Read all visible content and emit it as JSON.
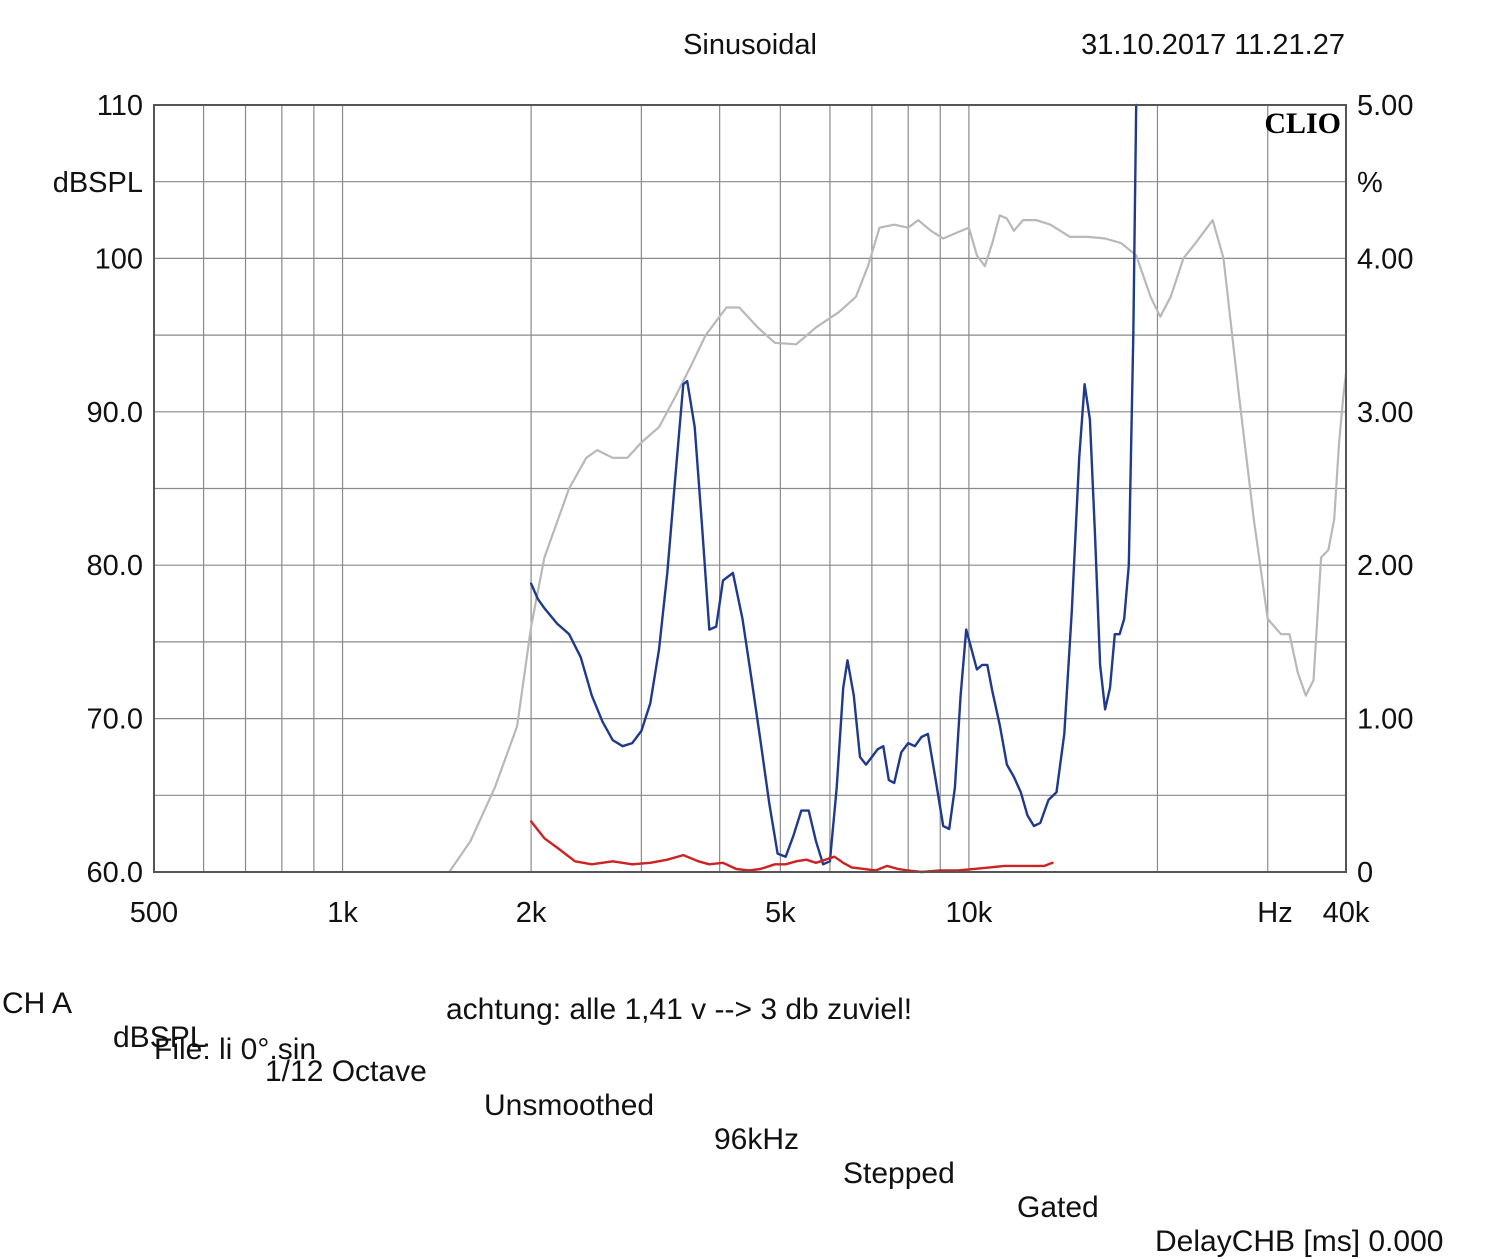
{
  "header": {
    "mode": "Sinusoidal",
    "datetime": "31.10.2017 11.21.27",
    "brand": "CLIO"
  },
  "chart_data": {
    "type": "line",
    "x_scale": "log",
    "xlim": [
      500,
      40000
    ],
    "ylim_left": [
      60,
      110
    ],
    "ylim_right": [
      0,
      5
    ],
    "left_unit": "dBSPL",
    "right_unit": "%",
    "x_unit": "Hz",
    "grid": true,
    "x_tick_labels": [
      {
        "v": 500,
        "t": "500"
      },
      {
        "v": 1000,
        "t": "1k"
      },
      {
        "v": 2000,
        "t": "2k"
      },
      {
        "v": 5000,
        "t": "5k"
      },
      {
        "v": 10000,
        "t": "10k"
      },
      {
        "v": 40000,
        "t": "40k"
      }
    ],
    "left_tick_labels": [
      {
        "v": 110,
        "t": "110"
      },
      {
        "v": 100,
        "t": "100"
      },
      {
        "v": 90,
        "t": "90.0"
      },
      {
        "v": 80,
        "t": "80.0"
      },
      {
        "v": 70,
        "t": "70.0"
      },
      {
        "v": 60,
        "t": "60.0"
      }
    ],
    "right_tick_labels": [
      {
        "v": 5,
        "t": "5.00"
      },
      {
        "v": 4,
        "t": "4.00"
      },
      {
        "v": 3,
        "t": "3.00"
      },
      {
        "v": 2,
        "t": "2.00"
      },
      {
        "v": 1,
        "t": "1.00"
      },
      {
        "v": 0,
        "t": "0"
      }
    ],
    "series": [
      {
        "axis": "left",
        "color": "#b8b8b8",
        "points": [
          [
            1480,
            60.0
          ],
          [
            1600,
            62.0
          ],
          [
            1750,
            65.5
          ],
          [
            1900,
            69.5
          ],
          [
            2000,
            76.0
          ],
          [
            2100,
            80.5
          ],
          [
            2300,
            85.0
          ],
          [
            2450,
            87.0
          ],
          [
            2550,
            87.5
          ],
          [
            2700,
            87.0
          ],
          [
            2850,
            87.0
          ],
          [
            3000,
            88.0
          ],
          [
            3200,
            89.0
          ],
          [
            3400,
            91.0
          ],
          [
            3600,
            93.0
          ],
          [
            3800,
            95.0
          ],
          [
            4100,
            96.8
          ],
          [
            4300,
            96.8
          ],
          [
            4600,
            95.5
          ],
          [
            4900,
            94.5
          ],
          [
            5300,
            94.4
          ],
          [
            5700,
            95.5
          ],
          [
            6200,
            96.5
          ],
          [
            6600,
            97.5
          ],
          [
            6900,
            99.5
          ],
          [
            7200,
            102.0
          ],
          [
            7600,
            102.2
          ],
          [
            8000,
            102.0
          ],
          [
            8300,
            102.5
          ],
          [
            8700,
            101.8
          ],
          [
            9100,
            101.3
          ],
          [
            9600,
            101.7
          ],
          [
            10000,
            102.0
          ],
          [
            10300,
            100.2
          ],
          [
            10600,
            99.5
          ],
          [
            10900,
            101.0
          ],
          [
            11200,
            102.8
          ],
          [
            11500,
            102.6
          ],
          [
            11800,
            101.8
          ],
          [
            12200,
            102.5
          ],
          [
            12800,
            102.5
          ],
          [
            13500,
            102.2
          ],
          [
            14500,
            101.4
          ],
          [
            15500,
            101.4
          ],
          [
            16500,
            101.3
          ],
          [
            17500,
            101.0
          ],
          [
            18500,
            100.2
          ],
          [
            19500,
            97.5
          ],
          [
            20200,
            96.2
          ],
          [
            21000,
            97.5
          ],
          [
            22000,
            100.0
          ],
          [
            23000,
            101.0
          ],
          [
            24000,
            102.0
          ],
          [
            24500,
            102.5
          ],
          [
            25500,
            100.0
          ],
          [
            27000,
            91.0
          ],
          [
            28500,
            83.0
          ],
          [
            30000,
            76.5
          ],
          [
            31500,
            75.5
          ],
          [
            32500,
            75.5
          ],
          [
            33500,
            73.0
          ],
          [
            34500,
            71.5
          ],
          [
            35500,
            72.5
          ],
          [
            36500,
            80.5
          ],
          [
            37500,
            81.0
          ],
          [
            38300,
            83.0
          ],
          [
            39000,
            88.0
          ],
          [
            39600,
            91.0
          ],
          [
            40000,
            92.5
          ]
        ]
      },
      {
        "axis": "right",
        "color": "#1f3a8c",
        "points": [
          [
            2000,
            1.88
          ],
          [
            2050,
            1.78
          ],
          [
            2100,
            1.72
          ],
          [
            2200,
            1.62
          ],
          [
            2300,
            1.55
          ],
          [
            2400,
            1.4
          ],
          [
            2500,
            1.15
          ],
          [
            2600,
            0.98
          ],
          [
            2700,
            0.86
          ],
          [
            2800,
            0.82
          ],
          [
            2900,
            0.84
          ],
          [
            3000,
            0.92
          ],
          [
            3100,
            1.1
          ],
          [
            3200,
            1.45
          ],
          [
            3300,
            1.95
          ],
          [
            3400,
            2.58
          ],
          [
            3500,
            3.18
          ],
          [
            3550,
            3.2
          ],
          [
            3650,
            2.9
          ],
          [
            3750,
            2.25
          ],
          [
            3850,
            1.58
          ],
          [
            3950,
            1.6
          ],
          [
            4050,
            1.9
          ],
          [
            4200,
            1.95
          ],
          [
            4350,
            1.65
          ],
          [
            4500,
            1.25
          ],
          [
            4650,
            0.85
          ],
          [
            4800,
            0.45
          ],
          [
            4950,
            0.12
          ],
          [
            5100,
            0.1
          ],
          [
            5250,
            0.24
          ],
          [
            5400,
            0.4
          ],
          [
            5550,
            0.4
          ],
          [
            5700,
            0.2
          ],
          [
            5850,
            0.05
          ],
          [
            6000,
            0.07
          ],
          [
            6150,
            0.55
          ],
          [
            6300,
            1.2
          ],
          [
            6400,
            1.38
          ],
          [
            6550,
            1.15
          ],
          [
            6700,
            0.75
          ],
          [
            6850,
            0.7
          ],
          [
            7000,
            0.75
          ],
          [
            7150,
            0.8
          ],
          [
            7300,
            0.82
          ],
          [
            7450,
            0.6
          ],
          [
            7600,
            0.58
          ],
          [
            7800,
            0.78
          ],
          [
            8000,
            0.84
          ],
          [
            8200,
            0.82
          ],
          [
            8400,
            0.88
          ],
          [
            8600,
            0.9
          ],
          [
            8850,
            0.6
          ],
          [
            9100,
            0.3
          ],
          [
            9300,
            0.28
          ],
          [
            9500,
            0.55
          ],
          [
            9700,
            1.15
          ],
          [
            9900,
            1.58
          ],
          [
            10100,
            1.45
          ],
          [
            10300,
            1.32
          ],
          [
            10500,
            1.35
          ],
          [
            10700,
            1.35
          ],
          [
            10900,
            1.18
          ],
          [
            11200,
            0.96
          ],
          [
            11500,
            0.7
          ],
          [
            11800,
            0.62
          ],
          [
            12100,
            0.52
          ],
          [
            12400,
            0.37
          ],
          [
            12700,
            0.3
          ],
          [
            13000,
            0.32
          ],
          [
            13400,
            0.47
          ],
          [
            13800,
            0.52
          ],
          [
            14200,
            0.9
          ],
          [
            14600,
            1.7
          ],
          [
            15000,
            2.7
          ],
          [
            15300,
            3.18
          ],
          [
            15600,
            2.95
          ],
          [
            15900,
            2.2
          ],
          [
            16200,
            1.35
          ],
          [
            16500,
            1.06
          ],
          [
            16800,
            1.2
          ],
          [
            17100,
            1.55
          ],
          [
            17400,
            1.55
          ],
          [
            17700,
            1.65
          ],
          [
            18000,
            2.0
          ],
          [
            18300,
            3.5
          ],
          [
            18500,
            5.0
          ]
        ]
      },
      {
        "axis": "right",
        "color": "#cc2222",
        "points": [
          [
            2000,
            0.33
          ],
          [
            2100,
            0.22
          ],
          [
            2200,
            0.16
          ],
          [
            2350,
            0.07
          ],
          [
            2500,
            0.05
          ],
          [
            2700,
            0.07
          ],
          [
            2900,
            0.05
          ],
          [
            3100,
            0.06
          ],
          [
            3300,
            0.08
          ],
          [
            3500,
            0.11
          ],
          [
            3700,
            0.07
          ],
          [
            3850,
            0.05
          ],
          [
            4050,
            0.06
          ],
          [
            4250,
            0.02
          ],
          [
            4450,
            0.01
          ],
          [
            4650,
            0.02
          ],
          [
            4900,
            0.05
          ],
          [
            5100,
            0.05
          ],
          [
            5300,
            0.07
          ],
          [
            5500,
            0.08
          ],
          [
            5700,
            0.06
          ],
          [
            5900,
            0.08
          ],
          [
            6100,
            0.1
          ],
          [
            6300,
            0.06
          ],
          [
            6500,
            0.03
          ],
          [
            6800,
            0.02
          ],
          [
            7100,
            0.01
          ],
          [
            7400,
            0.04
          ],
          [
            7700,
            0.02
          ],
          [
            8000,
            0.01
          ],
          [
            8400,
            0.0
          ],
          [
            9000,
            0.01
          ],
          [
            9600,
            0.01
          ],
          [
            10200,
            0.02
          ],
          [
            10800,
            0.03
          ],
          [
            11400,
            0.04
          ],
          [
            12000,
            0.04
          ],
          [
            12600,
            0.04
          ],
          [
            13200,
            0.04
          ],
          [
            13600,
            0.06
          ]
        ]
      }
    ]
  },
  "footer": {
    "parts": [
      "CH A",
      "dBSPL",
      "1/12 Octave",
      "Unsmoothed",
      "96kHz",
      "Stepped",
      "Gated",
      "DelayCHB [ms] 0.000"
    ],
    "note": "achtung: alle 1,41 v --> 3 db zuviel!",
    "file": "File: li 0°.sin"
  }
}
